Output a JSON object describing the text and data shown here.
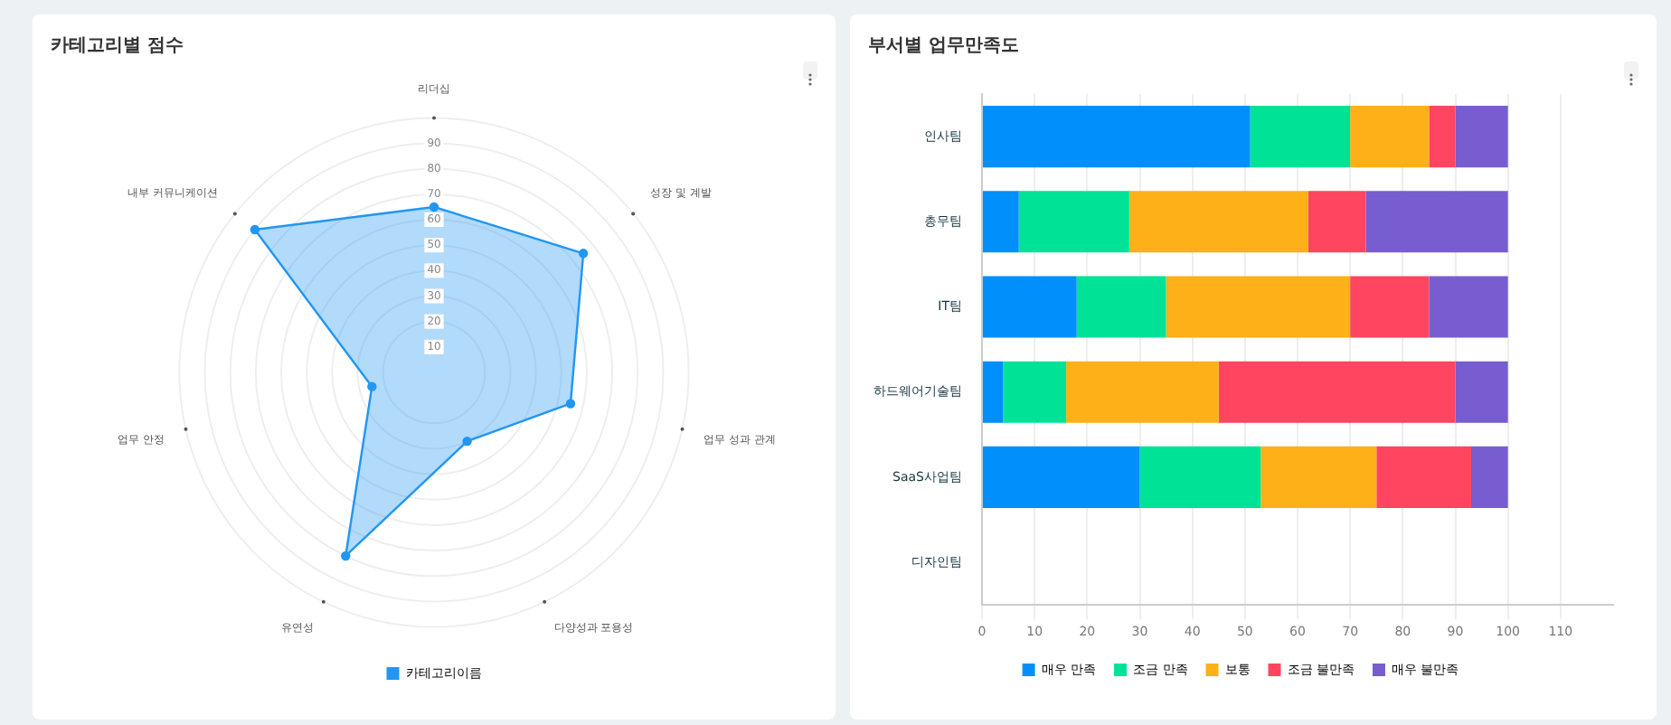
{
  "chart_data": [
    {
      "type": "radar",
      "title": "카테고리별 점수",
      "categories": [
        "리더십",
        "성장 및 계발",
        "업무 성과 관계",
        "다양성과 포용성",
        "유연성",
        "업무 안정",
        "내부 커뮤니케이션"
      ],
      "series": [
        {
          "name": "카테고리이름",
          "color": "#2196f3",
          "values": [
            65,
            75,
            55,
            30,
            80,
            25,
            90
          ]
        }
      ],
      "ylim": [
        0,
        100
      ],
      "yticks": [
        10,
        20,
        30,
        40,
        50,
        60,
        70,
        80,
        90
      ],
      "grid": true,
      "legend": "bottom",
      "marker": "circle"
    },
    {
      "type": "bar",
      "title": "부서별 업무만족도",
      "orientation": "horizontal",
      "stacked": true,
      "categories": [
        "인사팀",
        "총무팀",
        "IT팀",
        "하드웨어기술팀",
        "SaaS사업팀",
        "디자인팀"
      ],
      "series": [
        {
          "name": "매우 만족",
          "color": "#008ffb",
          "values": [
            51,
            7,
            18,
            4,
            30,
            null
          ]
        },
        {
          "name": "조금 만족",
          "color": "#00e396",
          "values": [
            19,
            21,
            17,
            12,
            23,
            null
          ]
        },
        {
          "name": "보통",
          "color": "#feb019",
          "values": [
            15,
            34,
            35,
            29,
            22,
            null
          ]
        },
        {
          "name": "조금 불만족",
          "color": "#ff4560",
          "values": [
            5,
            11,
            15,
            45,
            18,
            null
          ]
        },
        {
          "name": "매우 불만족",
          "color": "#775dd0",
          "values": [
            10,
            27,
            15,
            10,
            7,
            null
          ]
        }
      ],
      "xlim": [
        0,
        120
      ],
      "xticks": [
        0,
        10,
        20,
        30,
        40,
        50,
        60,
        70,
        80,
        90,
        100,
        110
      ],
      "grid": true,
      "legend": "bottom"
    }
  ]
}
